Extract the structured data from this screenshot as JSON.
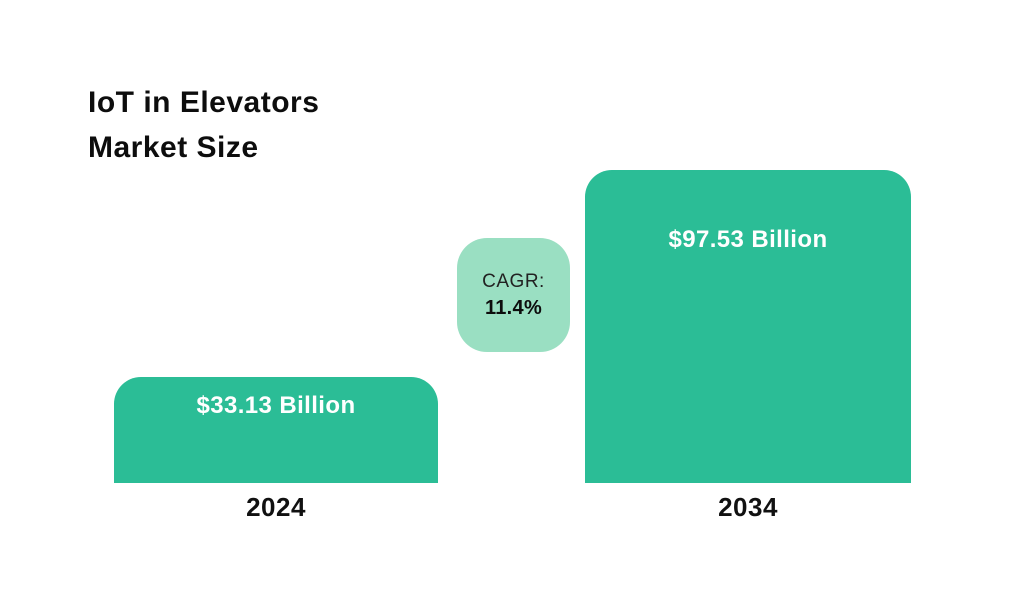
{
  "chart_data": {
    "type": "bar",
    "title": "IoT in Elevators Market Size",
    "title_lines": [
      "IoT in Elevators",
      "Market Size"
    ],
    "categories": [
      "2024",
      "2034"
    ],
    "values": [
      33.13,
      97.53
    ],
    "value_labels": [
      "$33.13 Billion",
      "$97.53 Billion"
    ],
    "annotation": {
      "label": "CAGR:",
      "value": "11.4%"
    },
    "ylim": [
      0,
      100
    ],
    "grid": false,
    "legend": false,
    "colors": {
      "bar": "#2bbd96",
      "badge": "#9adfc2",
      "bar_value_text": "#ffffff",
      "title_text": "#0d0d0d"
    }
  }
}
